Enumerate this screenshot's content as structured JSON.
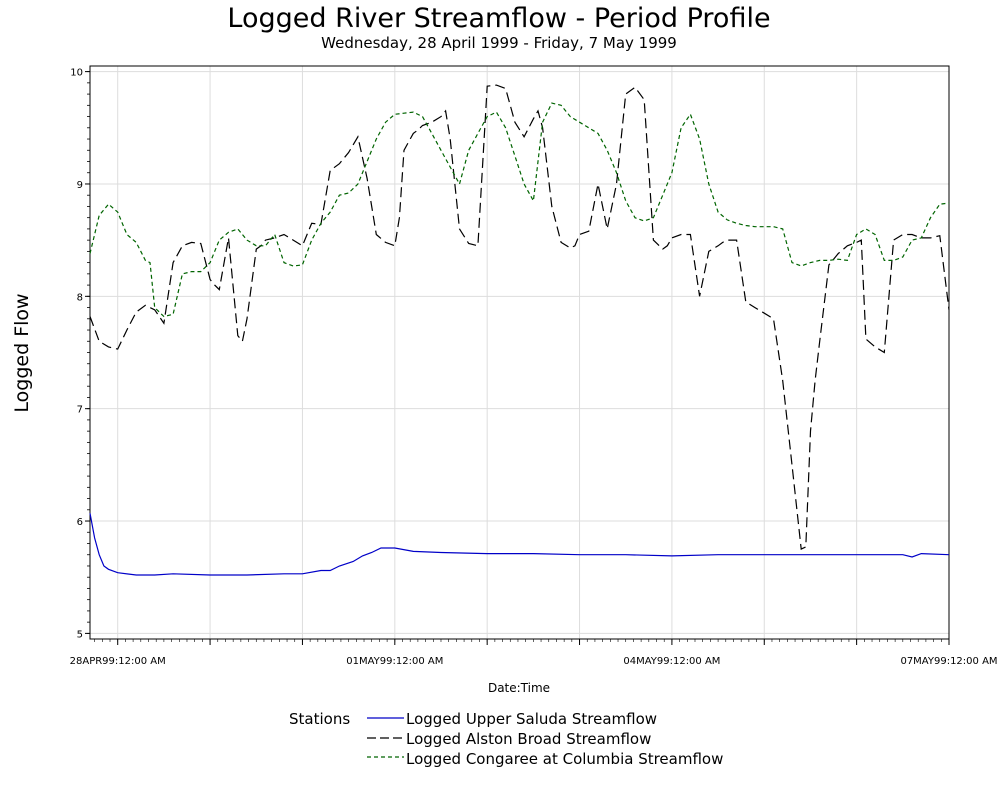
{
  "chart_data": {
    "type": "line",
    "title": "Logged River Streamflow - Period Profile",
    "subtitle": "Wednesday, 28 April 1999 - Friday, 7 May 1999",
    "xlabel": "Date:Time",
    "ylabel": "Logged Flow",
    "x_tick_labels": [
      "28APR99:12:00 AM",
      "01MAY99:12:00 AM",
      "04MAY99:12:00 AM",
      "07MAY99:12:00 AM"
    ],
    "y_ticks": [
      5,
      6,
      7,
      8,
      9,
      10
    ],
    "ylim": [
      4.95,
      10.05
    ],
    "xlim_days": [
      -0.3,
      9.0
    ],
    "grid": true,
    "legend": {
      "title": "Stations",
      "position": "bottom-center"
    },
    "colors": {
      "upper_saluda": "#0000c8",
      "alston_broad": "#000000",
      "congaree": "#006400",
      "grid": "#dddddd"
    },
    "series": [
      {
        "name": "Logged Upper Saluda Streamflow",
        "style": "solid",
        "x": [
          -0.3,
          -0.25,
          -0.2,
          -0.15,
          -0.1,
          0,
          0.2,
          0.4,
          0.6,
          1.0,
          1.4,
          1.8,
          2.0,
          2.2,
          2.3,
          2.4,
          2.55,
          2.65,
          2.75,
          2.85,
          3.0,
          3.2,
          3.5,
          4.0,
          4.5,
          5.0,
          5.5,
          6.0,
          6.5,
          7.0,
          7.5,
          8.0,
          8.5,
          8.6,
          8.7,
          9.0
        ],
        "y": [
          6.07,
          5.85,
          5.7,
          5.6,
          5.57,
          5.54,
          5.52,
          5.52,
          5.53,
          5.52,
          5.52,
          5.53,
          5.53,
          5.56,
          5.56,
          5.6,
          5.64,
          5.69,
          5.72,
          5.76,
          5.76,
          5.73,
          5.72,
          5.71,
          5.71,
          5.7,
          5.7,
          5.69,
          5.7,
          5.7,
          5.7,
          5.7,
          5.7,
          5.68,
          5.71,
          5.7
        ]
      },
      {
        "name": "Logged Alston Broad Streamflow",
        "style": "dashed",
        "x": [
          -0.3,
          -0.2,
          -0.1,
          0,
          0.1,
          0.2,
          0.3,
          0.35,
          0.4,
          0.5,
          0.6,
          0.7,
          0.8,
          0.9,
          1.0,
          1.05,
          1.1,
          1.2,
          1.3,
          1.35,
          1.4,
          1.5,
          1.55,
          1.6,
          1.7,
          1.8,
          1.9,
          2.0,
          2.1,
          2.2,
          2.3,
          2.4,
          2.5,
          2.6,
          2.7,
          2.8,
          2.9,
          3.0,
          3.05,
          3.1,
          3.2,
          3.25,
          3.3,
          3.4,
          3.5,
          3.55,
          3.6,
          3.7,
          3.8,
          3.9,
          4.0,
          4.1,
          4.2,
          4.3,
          4.4,
          4.5,
          4.55,
          4.6,
          4.7,
          4.8,
          4.9,
          4.95,
          5.0,
          5.1,
          5.2,
          5.3,
          5.4,
          5.5,
          5.6,
          5.7,
          5.8,
          5.9,
          5.95,
          6.0,
          6.1,
          6.2,
          6.3,
          6.4,
          6.5,
          6.55,
          6.6,
          6.7,
          6.8,
          6.9,
          7.0,
          7.1,
          7.2,
          7.3,
          7.4,
          7.45,
          7.5,
          7.55,
          7.6,
          7.7,
          7.8,
          7.9,
          8.0,
          8.05,
          8.1,
          8.2,
          8.3,
          8.4,
          8.5,
          8.6,
          8.7,
          8.8,
          8.9,
          9.0
        ],
        "y": [
          7.82,
          7.6,
          7.55,
          7.53,
          7.7,
          7.86,
          7.92,
          7.9,
          7.88,
          7.76,
          8.3,
          8.45,
          8.48,
          8.47,
          8.15,
          8.1,
          8.06,
          8.52,
          7.65,
          7.6,
          7.8,
          8.42,
          8.45,
          8.5,
          8.52,
          8.55,
          8.5,
          8.45,
          8.65,
          8.64,
          9.12,
          9.18,
          9.28,
          9.42,
          9.05,
          8.55,
          8.48,
          8.45,
          8.7,
          9.3,
          9.45,
          9.48,
          9.52,
          9.55,
          9.6,
          9.65,
          9.4,
          8.6,
          8.47,
          8.45,
          9.87,
          9.88,
          9.85,
          9.55,
          9.42,
          9.58,
          9.65,
          9.5,
          8.8,
          8.48,
          8.43,
          8.45,
          8.55,
          8.58,
          9.0,
          8.6,
          9.0,
          9.8,
          9.86,
          9.75,
          8.5,
          8.42,
          8.45,
          8.52,
          8.55,
          8.55,
          8.0,
          8.4,
          8.45,
          8.48,
          8.5,
          8.5,
          7.95,
          7.9,
          7.85,
          7.8,
          7.25,
          6.5,
          5.75,
          5.77,
          6.8,
          7.25,
          7.6,
          8.28,
          8.38,
          8.45,
          8.48,
          8.5,
          7.62,
          7.55,
          7.5,
          8.5,
          8.55,
          8.55,
          8.52,
          8.52,
          8.54,
          7.88
        ]
      },
      {
        "name": "Logged Congaree at Columbia Streamflow",
        "style": "dashed",
        "x": [
          -0.3,
          -0.25,
          -0.2,
          -0.1,
          0,
          0.1,
          0.2,
          0.3,
          0.35,
          0.4,
          0.5,
          0.6,
          0.7,
          0.8,
          0.9,
          1.0,
          1.1,
          1.2,
          1.3,
          1.4,
          1.5,
          1.6,
          1.7,
          1.8,
          1.9,
          2.0,
          2.1,
          2.2,
          2.3,
          2.4,
          2.5,
          2.6,
          2.7,
          2.8,
          2.9,
          3.0,
          3.1,
          3.2,
          3.3,
          3.4,
          3.5,
          3.6,
          3.7,
          3.8,
          3.9,
          4.0,
          4.1,
          4.2,
          4.3,
          4.4,
          4.5,
          4.6,
          4.7,
          4.8,
          4.9,
          5.0,
          5.1,
          5.2,
          5.3,
          5.4,
          5.5,
          5.6,
          5.7,
          5.8,
          5.9,
          6.0,
          6.1,
          6.2,
          6.3,
          6.4,
          6.5,
          6.6,
          6.7,
          6.8,
          6.9,
          7.0,
          7.1,
          7.2,
          7.3,
          7.4,
          7.5,
          7.6,
          7.7,
          7.8,
          7.9,
          8.0,
          8.1,
          8.2,
          8.3,
          8.4,
          8.5,
          8.6,
          8.7,
          8.8,
          8.9,
          9.0
        ],
        "y": [
          8.38,
          8.55,
          8.72,
          8.82,
          8.75,
          8.55,
          8.48,
          8.32,
          8.3,
          7.9,
          7.82,
          7.84,
          8.2,
          8.22,
          8.22,
          8.3,
          8.5,
          8.57,
          8.6,
          8.5,
          8.45,
          8.45,
          8.55,
          8.3,
          8.27,
          8.28,
          8.5,
          8.65,
          8.75,
          8.9,
          8.92,
          9.0,
          9.2,
          9.4,
          9.55,
          9.62,
          9.63,
          9.64,
          9.6,
          9.45,
          9.3,
          9.15,
          9.0,
          9.3,
          9.45,
          9.6,
          9.64,
          9.5,
          9.25,
          9.0,
          8.85,
          9.55,
          9.72,
          9.7,
          9.6,
          9.55,
          9.5,
          9.45,
          9.3,
          9.1,
          8.85,
          8.7,
          8.67,
          8.7,
          8.9,
          9.1,
          9.5,
          9.62,
          9.4,
          9.0,
          8.75,
          8.68,
          8.65,
          8.63,
          8.62,
          8.62,
          8.62,
          8.6,
          8.3,
          8.27,
          8.3,
          8.32,
          8.32,
          8.33,
          8.32,
          8.55,
          8.6,
          8.55,
          8.32,
          8.32,
          8.35,
          8.5,
          8.52,
          8.7,
          8.82,
          8.83
        ]
      }
    ]
  }
}
